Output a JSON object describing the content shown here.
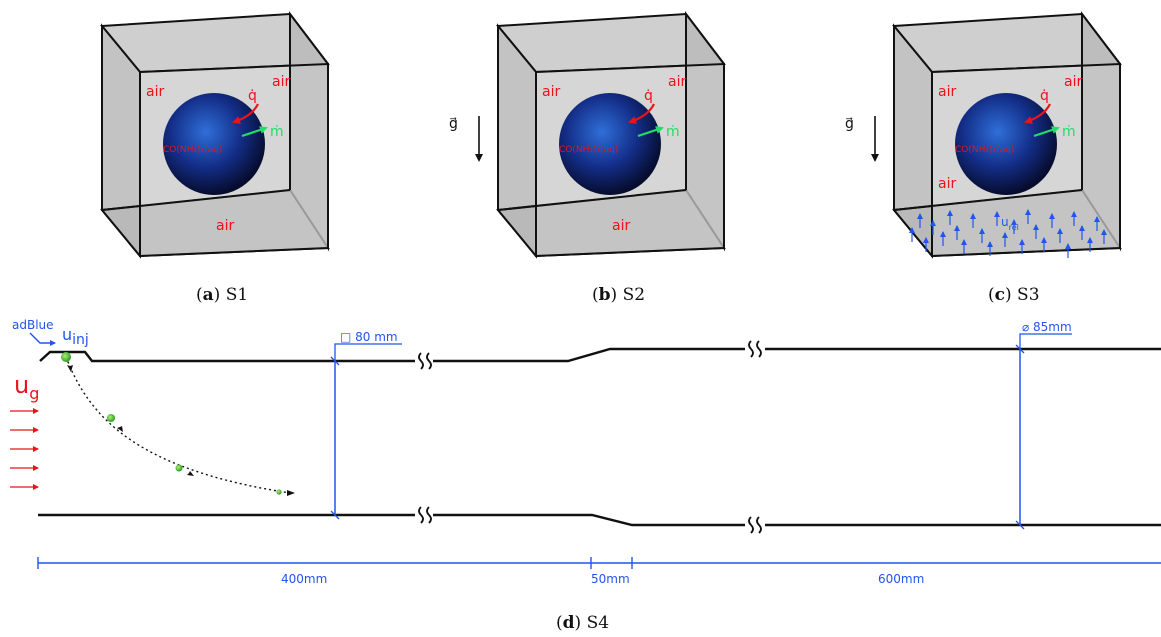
{
  "panels": [
    {
      "id": "S1",
      "caption_letter": "a",
      "caption_name": "S1",
      "labels": {
        "air_left": "air",
        "air_right": "air",
        "air_bottom": "air",
        "q": "q̇",
        "m": "ṁ",
        "species": "CO(NH₂)₂(aq)"
      }
    },
    {
      "id": "S2",
      "caption_letter": "b",
      "caption_name": "S2",
      "gravity": "g⃗",
      "labels": {
        "air_left": "air",
        "air_right": "air",
        "air_bottom": "air",
        "q": "q̇",
        "m": "ṁ",
        "species": "CO(NH₂)₂(aq)"
      }
    },
    {
      "id": "S3",
      "caption_letter": "c",
      "caption_name": "S3",
      "gravity": "g⃗",
      "labels": {
        "air_left": "air",
        "air_right": "air",
        "air_bottom": "air",
        "q": "q̇",
        "m": "ṁ",
        "species": "CO(NH₂)₂(aq)",
        "u_rel": "u",
        "u_rel_sub": "rel"
      }
    }
  ],
  "s4": {
    "caption_letter": "d",
    "caption_name": "S4",
    "adblue": "adBlue",
    "u_inj": "u",
    "u_inj_sub": "inj",
    "u_g": "u",
    "u_g_sub": "g",
    "section1": "□ 80 mm",
    "section2": "⌀ 85mm",
    "len1": "400mm",
    "len2": "50mm",
    "len3": "600mm"
  },
  "colors": {
    "air_label": "#e8141b",
    "mass_flux": "#22dd66",
    "dimension": "#2255ee",
    "droplet": "#1a3aa8",
    "box_face": "#c6c6c6"
  }
}
